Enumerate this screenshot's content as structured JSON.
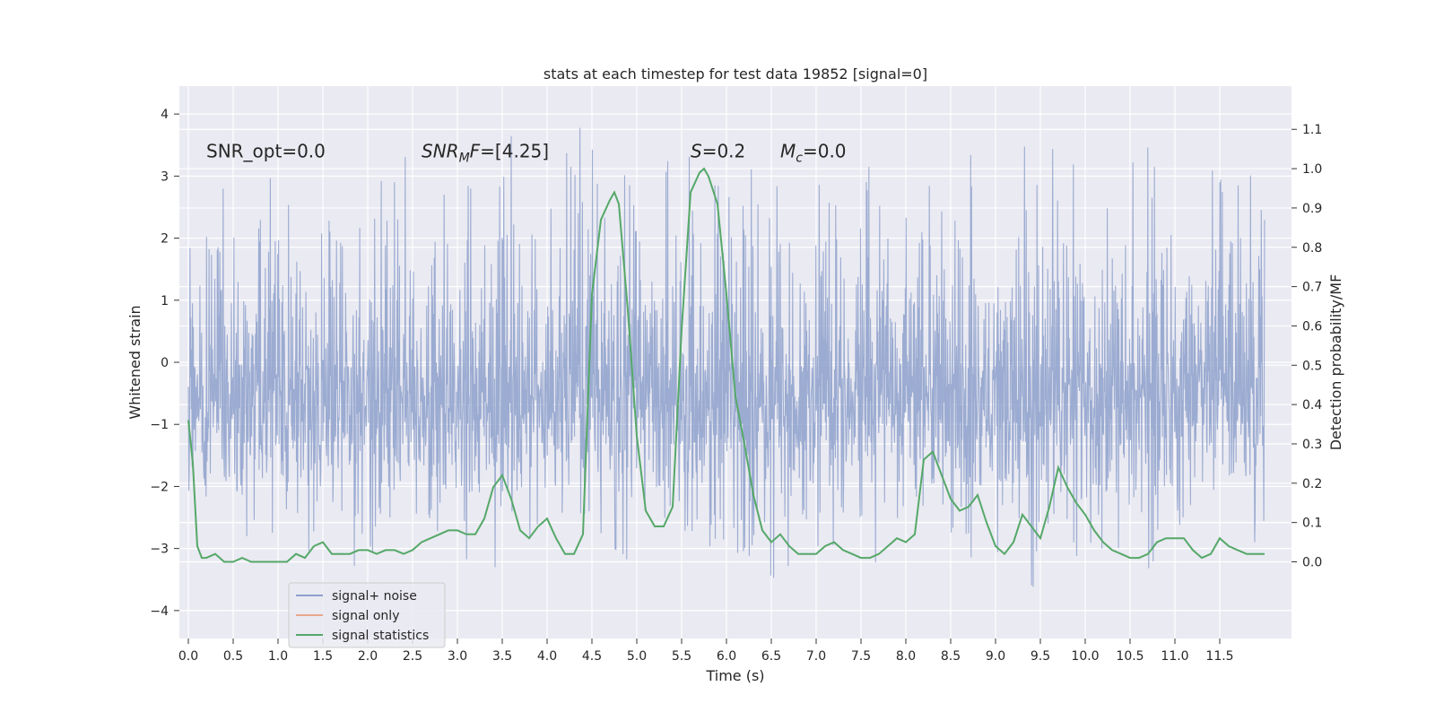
{
  "chart_data": {
    "type": "line",
    "title": "stats at each timestep for test data 19852 [signal=0]",
    "xlabel": "Time (s)",
    "ylabel": "Whitened strain",
    "y2label": "Detection probability/MF",
    "xlim": [
      -0.1,
      12.3
    ],
    "ylim": [
      -4.45,
      4.45
    ],
    "y2lim": [
      -0.195,
      1.21
    ],
    "xticks": [
      0.0,
      0.5,
      1.0,
      1.5,
      2.0,
      2.5,
      3.0,
      3.5,
      4.0,
      4.5,
      5.0,
      5.5,
      6.0,
      6.5,
      7.0,
      7.5,
      8.0,
      8.5,
      9.0,
      9.5,
      10.0,
      10.5,
      11.0,
      11.5
    ],
    "xtick_labels": [
      "0.0",
      "0.5",
      "1.0",
      "1.5",
      "2.0",
      "2.5",
      "3.0",
      "3.5",
      "4.0",
      "4.5",
      "5.0",
      "5.5",
      "6.0",
      "6.5",
      "7.0",
      "7.5",
      "8.0",
      "8.5",
      "9.0",
      "9.5",
      "10.0",
      "10.5",
      "11.0",
      "11.5"
    ],
    "yticks": [
      4,
      3,
      2,
      1,
      0,
      -1,
      -2,
      -3,
      -4
    ],
    "ytick_labels": [
      "4",
      "3",
      "2",
      "1",
      "0",
      "−1",
      "−2",
      "−3",
      "−4"
    ],
    "y2ticks": [
      1.1,
      1.0,
      0.9,
      0.8,
      0.7,
      0.6,
      0.5,
      0.4,
      0.3,
      0.2,
      0.1,
      0.0
    ],
    "y2tick_labels": [
      "1.1",
      "1.0",
      "0.9",
      "0.8",
      "0.7",
      "0.6",
      "0.5",
      "0.4",
      "0.3",
      "0.2",
      "0.1",
      "0.0"
    ],
    "grid": true,
    "legend_position": "lower-left",
    "legend": [
      {
        "label": "signal+ noise",
        "color": "#8da0cb"
      },
      {
        "label": "signal only",
        "color": "#e8a88c"
      },
      {
        "label": "signal statistics",
        "color": "#55a868"
      }
    ],
    "annotations": [
      {
        "text": "SNR_opt=0.0",
        "x": 0.2,
        "y": 3.3
      },
      {
        "text": "SNR_MF=[4.25]",
        "x": 2.6,
        "y": 3.3
      },
      {
        "text": "S=0.2",
        "x": 5.6,
        "y": 3.3
      },
      {
        "text": "M_c=0.0",
        "x": 6.6,
        "y": 3.3
      }
    ],
    "series": [
      {
        "name": "signal+ noise",
        "axis": "left",
        "color": "#8da0cb",
        "x_range": [
          0.0,
          12.0
        ],
        "peaks": [
          {
            "x": 0.1,
            "y": 2.5
          },
          {
            "x": 0.3,
            "y": 3.15
          },
          {
            "x": 0.6,
            "y": 3.4
          },
          {
            "x": 0.9,
            "y": 3.3
          },
          {
            "x": 1.1,
            "y": 3.45
          },
          {
            "x": 1.3,
            "y": 3.15
          },
          {
            "x": 1.6,
            "y": 3.25
          },
          {
            "x": 1.9,
            "y": 3.6
          },
          {
            "x": 2.1,
            "y": 3.1
          },
          {
            "x": 2.5,
            "y": 3.5
          },
          {
            "x": 2.8,
            "y": 3.1
          },
          {
            "x": 3.0,
            "y": 3.4
          },
          {
            "x": 3.5,
            "y": 3.45
          },
          {
            "x": 3.8,
            "y": 4.1
          },
          {
            "x": 4.1,
            "y": 3.1
          },
          {
            "x": 4.4,
            "y": 4.05
          },
          {
            "x": 4.7,
            "y": 3.0
          },
          {
            "x": 5.0,
            "y": 3.3
          },
          {
            "x": 5.4,
            "y": 3.4
          },
          {
            "x": 5.9,
            "y": 4.05
          },
          {
            "x": 6.3,
            "y": 3.1
          },
          {
            "x": 6.6,
            "y": 3.4
          },
          {
            "x": 7.0,
            "y": 3.1
          },
          {
            "x": 7.4,
            "y": 3.3
          },
          {
            "x": 7.9,
            "y": 3.55
          },
          {
            "x": 8.2,
            "y": 3.0
          },
          {
            "x": 8.5,
            "y": 3.1
          },
          {
            "x": 8.7,
            "y": 3.35
          },
          {
            "x": 9.1,
            "y": 4.0
          },
          {
            "x": 9.5,
            "y": 3.6
          },
          {
            "x": 9.8,
            "y": 3.35
          },
          {
            "x": 10.2,
            "y": 3.35
          },
          {
            "x": 10.5,
            "y": 3.55
          },
          {
            "x": 11.0,
            "y": 3.5
          },
          {
            "x": 11.3,
            "y": 3.45
          },
          {
            "x": 11.6,
            "y": 3.0
          },
          {
            "x": 11.9,
            "y": 3.1
          }
        ],
        "troughs": [
          {
            "x": 0.1,
            "y": -2.1
          },
          {
            "x": 0.6,
            "y": -2.9
          },
          {
            "x": 1.0,
            "y": -3.2
          },
          {
            "x": 1.3,
            "y": -3.6
          },
          {
            "x": 1.7,
            "y": -3.0
          },
          {
            "x": 2.1,
            "y": -3.0
          },
          {
            "x": 2.6,
            "y": -3.2
          },
          {
            "x": 2.8,
            "y": -3.5
          },
          {
            "x": 3.1,
            "y": -3.2
          },
          {
            "x": 3.6,
            "y": -3.0
          },
          {
            "x": 4.0,
            "y": -3.1
          },
          {
            "x": 4.2,
            "y": -3.3
          },
          {
            "x": 4.7,
            "y": -3.1
          },
          {
            "x": 4.9,
            "y": -3.2
          },
          {
            "x": 5.2,
            "y": -2.9
          },
          {
            "x": 5.6,
            "y": -3.1
          },
          {
            "x": 6.1,
            "y": -3.45
          },
          {
            "x": 6.5,
            "y": -3.5
          },
          {
            "x": 6.8,
            "y": -3.55
          },
          {
            "x": 7.2,
            "y": -3.15
          },
          {
            "x": 7.5,
            "y": -3.9
          },
          {
            "x": 7.7,
            "y": -3.2
          },
          {
            "x": 7.9,
            "y": -3.9
          },
          {
            "x": 8.3,
            "y": -3.1
          },
          {
            "x": 8.7,
            "y": -3.2
          },
          {
            "x": 9.2,
            "y": -3.1
          },
          {
            "x": 9.6,
            "y": -3.4
          },
          {
            "x": 10.0,
            "y": -3.3
          },
          {
            "x": 10.3,
            "y": -3.0
          },
          {
            "x": 10.6,
            "y": -3.5
          },
          {
            "x": 10.9,
            "y": -3.6
          },
          {
            "x": 11.2,
            "y": -3.35
          },
          {
            "x": 11.6,
            "y": -3.2
          },
          {
            "x": 11.8,
            "y": -4.05
          },
          {
            "x": 11.95,
            "y": -2.7
          }
        ]
      },
      {
        "name": "signal only",
        "axis": "left",
        "color": "#e8a88c",
        "x": [],
        "y": []
      },
      {
        "name": "signal statistics",
        "axis": "right",
        "color": "#55a868",
        "x": [
          0.0,
          0.05,
          0.1,
          0.15,
          0.2,
          0.3,
          0.4,
          0.5,
          0.6,
          0.7,
          0.8,
          0.9,
          1.0,
          1.1,
          1.2,
          1.3,
          1.4,
          1.5,
          1.6,
          1.7,
          1.8,
          1.9,
          2.0,
          2.1,
          2.2,
          2.3,
          2.4,
          2.5,
          2.6,
          2.7,
          2.8,
          2.9,
          3.0,
          3.1,
          3.2,
          3.3,
          3.4,
          3.5,
          3.6,
          3.7,
          3.8,
          3.9,
          4.0,
          4.1,
          4.2,
          4.3,
          4.4,
          4.5,
          4.6,
          4.7,
          4.75,
          4.8,
          4.9,
          5.0,
          5.1,
          5.2,
          5.3,
          5.4,
          5.5,
          5.6,
          5.7,
          5.75,
          5.8,
          5.9,
          6.0,
          6.1,
          6.2,
          6.3,
          6.4,
          6.5,
          6.6,
          6.7,
          6.8,
          6.9,
          7.0,
          7.1,
          7.2,
          7.3,
          7.4,
          7.5,
          7.6,
          7.7,
          7.8,
          7.9,
          8.0,
          8.1,
          8.2,
          8.3,
          8.4,
          8.5,
          8.6,
          8.7,
          8.8,
          8.9,
          9.0,
          9.1,
          9.2,
          9.3,
          9.4,
          9.5,
          9.6,
          9.7,
          9.8,
          9.9,
          10.0,
          10.1,
          10.2,
          10.3,
          10.4,
          10.5,
          10.6,
          10.7,
          10.8,
          10.9,
          11.0,
          11.1,
          11.2,
          11.3,
          11.4,
          11.5,
          11.6,
          11.7,
          11.8,
          11.9,
          12.0
        ],
        "y": [
          0.36,
          0.25,
          0.04,
          0.01,
          0.01,
          0.02,
          0.0,
          0.0,
          0.01,
          0.0,
          0.0,
          0.0,
          0.0,
          0.0,
          0.02,
          0.01,
          0.04,
          0.05,
          0.02,
          0.02,
          0.02,
          0.03,
          0.03,
          0.02,
          0.03,
          0.03,
          0.02,
          0.03,
          0.05,
          0.06,
          0.07,
          0.08,
          0.08,
          0.07,
          0.07,
          0.11,
          0.19,
          0.22,
          0.16,
          0.08,
          0.06,
          0.09,
          0.11,
          0.06,
          0.02,
          0.02,
          0.07,
          0.68,
          0.87,
          0.92,
          0.94,
          0.91,
          0.64,
          0.32,
          0.13,
          0.09,
          0.09,
          0.14,
          0.59,
          0.94,
          0.99,
          1.0,
          0.98,
          0.91,
          0.68,
          0.42,
          0.3,
          0.17,
          0.08,
          0.05,
          0.07,
          0.04,
          0.02,
          0.02,
          0.02,
          0.04,
          0.05,
          0.03,
          0.02,
          0.01,
          0.01,
          0.02,
          0.04,
          0.06,
          0.05,
          0.07,
          0.26,
          0.28,
          0.22,
          0.16,
          0.13,
          0.14,
          0.17,
          0.1,
          0.04,
          0.02,
          0.05,
          0.12,
          0.09,
          0.06,
          0.14,
          0.24,
          0.19,
          0.15,
          0.12,
          0.08,
          0.05,
          0.03,
          0.02,
          0.01,
          0.01,
          0.02,
          0.05,
          0.06,
          0.06,
          0.06,
          0.03,
          0.01,
          0.02,
          0.06,
          0.04,
          0.03,
          0.02,
          0.02,
          0.02
        ]
      }
    ]
  }
}
